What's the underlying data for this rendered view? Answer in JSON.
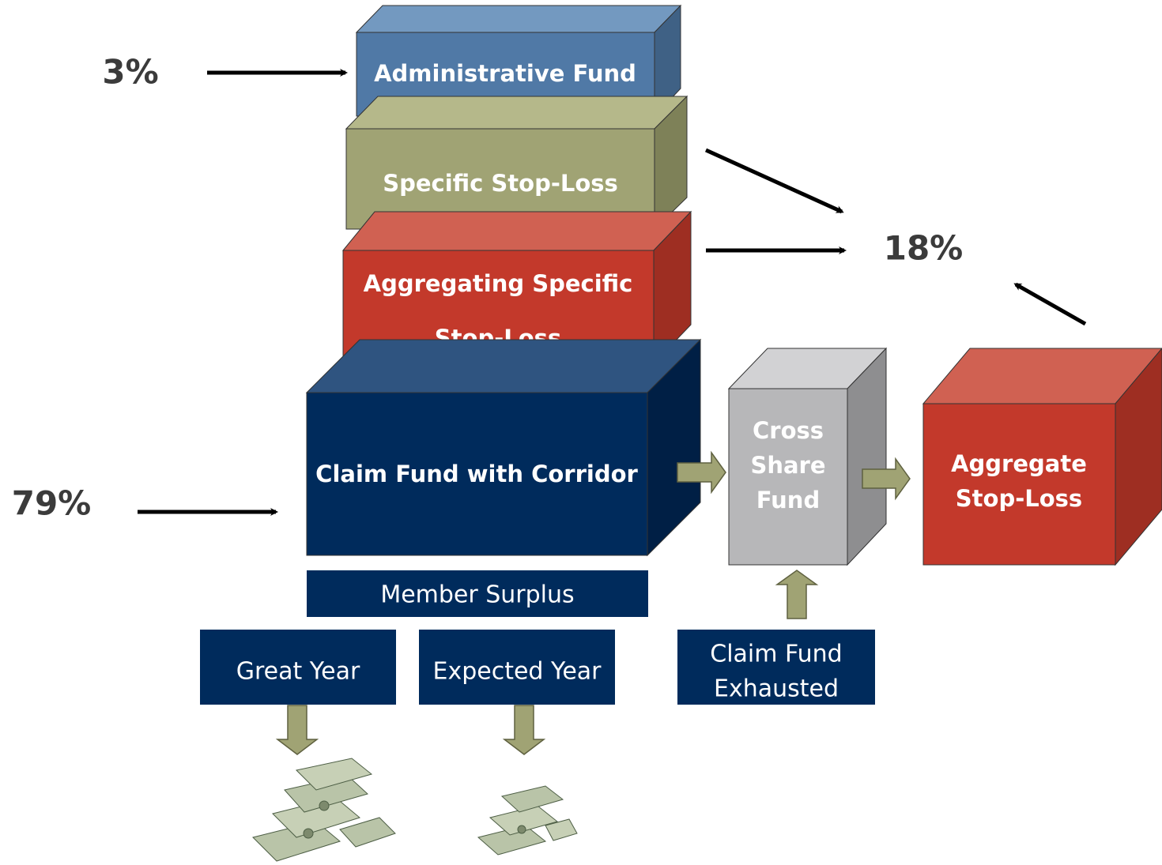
{
  "labels": {
    "admin_pct": "3%",
    "stop_loss_pct": "18%",
    "claim_pct": "79%"
  },
  "blocks": {
    "administrative_fund": "Administrative Fund",
    "specific_stop_loss": "Specific Stop-Loss",
    "aggregating_specific_stop_loss": [
      "Aggregating Specific",
      "Stop-Loss"
    ],
    "claim_fund": "Claim Fund with Corridor",
    "cross_share_fund": [
      "Cross",
      "Share",
      "Fund"
    ],
    "aggregate_stop_loss": [
      "Aggregate",
      "Stop-Loss"
    ]
  },
  "boxes": {
    "member_surplus": "Member Surplus",
    "great_year": "Great Year",
    "expected_year": "Expected Year",
    "claim_fund_exhausted": [
      "Claim Fund",
      "Exhausted"
    ]
  }
}
